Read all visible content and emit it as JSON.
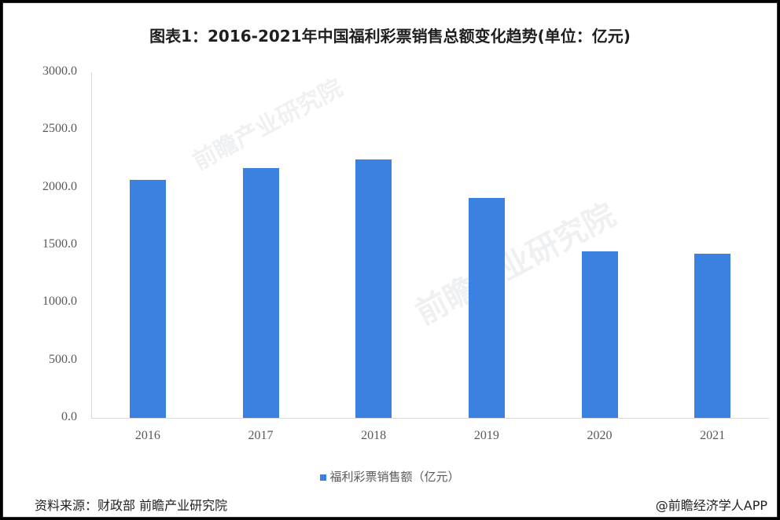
{
  "title": "图表1：2016-2021年中国福利彩票销售总额变化趋势(单位：亿元)",
  "chart_data": {
    "type": "bar",
    "title": "图表1：2016-2021年中国福利彩票销售总额变化趋势(单位：亿元)",
    "categories": [
      "2016",
      "2017",
      "2018",
      "2019",
      "2020",
      "2021"
    ],
    "series": [
      {
        "name": "福利彩票销售额（亿元）",
        "color": "#3b82e0",
        "values": [
          2064.9,
          2169.8,
          2245.6,
          1912.4,
          1444.9,
          1422.6
        ]
      }
    ],
    "xlabel": "",
    "ylabel": "",
    "ylim": [
      0,
      3000
    ],
    "yticks": [
      "0.0",
      "500.0",
      "1000.0",
      "1500.0",
      "2000.0",
      "2500.0",
      "3000.0"
    ],
    "grid": false,
    "legend_position": "bottom"
  },
  "legend": {
    "label": "福利彩票销售额（亿元）"
  },
  "footer": {
    "source": "资料来源：财政部 前瞻产业研究院",
    "credit": "@前瞻经济学人APP"
  },
  "watermark": {
    "text": "前瞻产业研究院"
  }
}
